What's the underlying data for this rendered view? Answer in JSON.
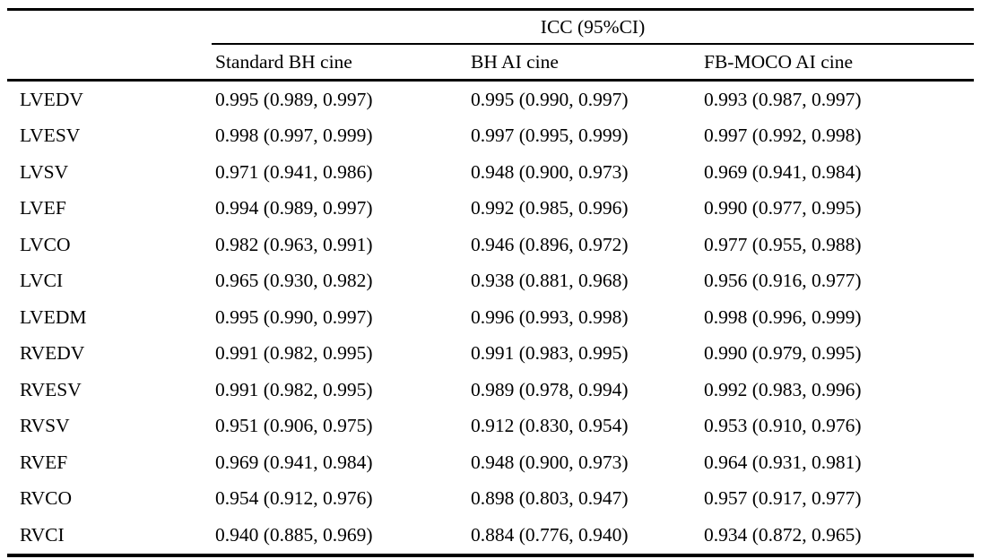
{
  "table": {
    "group_header": "ICC (95%CI)",
    "columns": [
      "Standard BH cine",
      "BH AI cine",
      "FB-MOCO AI cine"
    ],
    "rows": [
      {
        "label": "LVEDV",
        "values": [
          "0.995 (0.989, 0.997)",
          "0.995 (0.990, 0.997)",
          "0.993 (0.987, 0.997)"
        ]
      },
      {
        "label": "LVESV",
        "values": [
          "0.998 (0.997, 0.999)",
          "0.997 (0.995, 0.999)",
          "0.997 (0.992, 0.998)"
        ]
      },
      {
        "label": "LVSV",
        "values": [
          "0.971 (0.941, 0.986)",
          "0.948 (0.900, 0.973)",
          "0.969 (0.941, 0.984)"
        ]
      },
      {
        "label": "LVEF",
        "values": [
          "0.994 (0.989, 0.997)",
          "0.992 (0.985, 0.996)",
          "0.990 (0.977, 0.995)"
        ]
      },
      {
        "label": "LVCO",
        "values": [
          "0.982 (0.963, 0.991)",
          "0.946 (0.896, 0.972)",
          "0.977 (0.955, 0.988)"
        ]
      },
      {
        "label": "LVCI",
        "values": [
          "0.965 (0.930, 0.982)",
          "0.938 (0.881, 0.968)",
          "0.956 (0.916, 0.977)"
        ]
      },
      {
        "label": "LVEDM",
        "values": [
          "0.995 (0.990, 0.997)",
          "0.996 (0.993, 0.998)",
          "0.998 (0.996, 0.999)"
        ]
      },
      {
        "label": "RVEDV",
        "values": [
          "0.991 (0.982, 0.995)",
          "0.991 (0.983, 0.995)",
          "0.990 (0.979, 0.995)"
        ]
      },
      {
        "label": "RVESV",
        "values": [
          "0.991 (0.982, 0.995)",
          "0.989 (0.978, 0.994)",
          "0.992 (0.983, 0.996)"
        ]
      },
      {
        "label": "RVSV",
        "values": [
          "0.951 (0.906, 0.975)",
          "0.912 (0.830, 0.954)",
          "0.953 (0.910, 0.976)"
        ]
      },
      {
        "label": "RVEF",
        "values": [
          "0.969 (0.941, 0.984)",
          "0.948 (0.900, 0.973)",
          "0.964 (0.931, 0.981)"
        ]
      },
      {
        "label": "RVCO",
        "values": [
          "0.954 (0.912, 0.976)",
          "0.898 (0.803, 0.947)",
          "0.957 (0.917, 0.977)"
        ]
      },
      {
        "label": "RVCI",
        "values": [
          "0.940 (0.885, 0.969)",
          "0.884 (0.776, 0.940)",
          "0.934 (0.872, 0.965)"
        ]
      }
    ]
  }
}
